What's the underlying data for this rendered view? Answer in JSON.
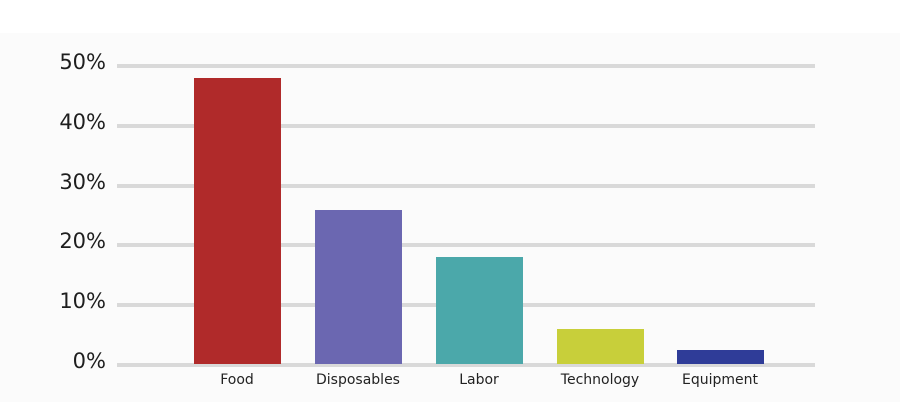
{
  "chart_data": {
    "type": "bar",
    "title": "",
    "xlabel": "",
    "ylabel": "",
    "categories": [
      "Food",
      "Disposables",
      "Labor",
      "Technology",
      "Equipment"
    ],
    "values": [
      48,
      26,
      18,
      6,
      2.5
    ],
    "colors": [
      "#b02a2a",
      "#6b67b1",
      "#4ba8aa",
      "#c8cf3a",
      "#2f3c98"
    ],
    "ylim": [
      0,
      50
    ],
    "yticks": [
      0,
      10,
      20,
      30,
      40,
      50
    ],
    "ytick_labels": [
      "0%",
      "10%",
      "20%",
      "30%",
      "40%",
      "50%"
    ],
    "grid": true,
    "legend": null
  }
}
